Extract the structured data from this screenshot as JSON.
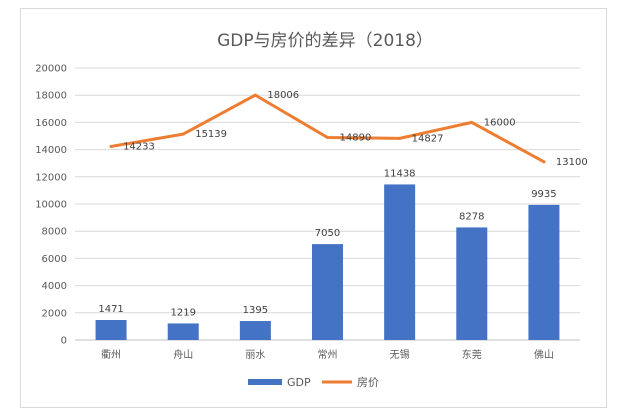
{
  "chart_data": {
    "type": "bar",
    "title": "GDP与房价的差异（2018）",
    "categories": [
      "衢州",
      "舟山",
      "丽水",
      "常州",
      "无锡",
      "东莞",
      "佛山"
    ],
    "ylim": [
      0,
      20000
    ],
    "yticks": [
      0,
      2000,
      4000,
      6000,
      8000,
      10000,
      12000,
      14000,
      16000,
      18000,
      20000
    ],
    "grid": true,
    "legend": "bottom",
    "series": [
      {
        "name": "GDP",
        "type": "bar",
        "color": "#4472C4",
        "values": [
          1471,
          1219,
          1395,
          7050,
          11438,
          8278,
          9935
        ]
      },
      {
        "name": "房价",
        "type": "line",
        "color": "#ED7D31",
        "values": [
          14233,
          15139,
          18006,
          14890,
          14827,
          16000,
          13100
        ]
      }
    ]
  }
}
